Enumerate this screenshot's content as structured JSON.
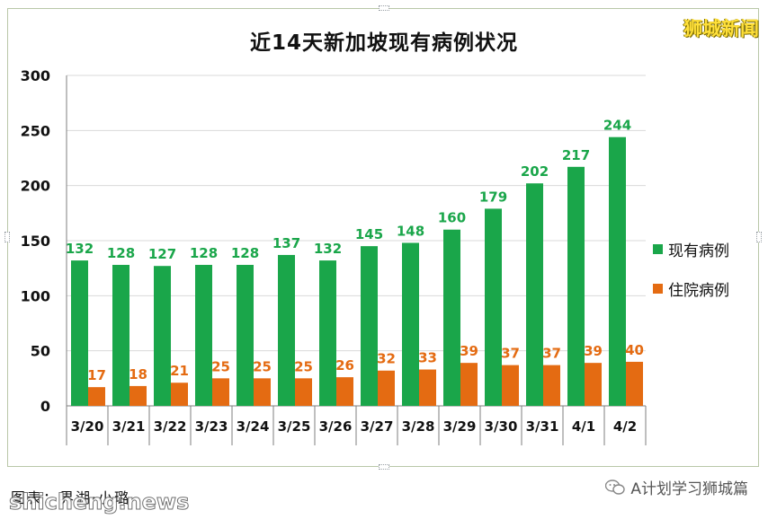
{
  "watermark_top": "狮城新闻",
  "caption": "图表：界湖·小璐",
  "site_overlay": "shicheng.news",
  "wechat_label": "A计划学习狮城篇",
  "colors": {
    "current": "#1aa64a",
    "hospital": "#e46b12",
    "grid": "#d9d9d9"
  },
  "chart_data": {
    "type": "bar",
    "title": "近14天新加坡现有病例状况",
    "categories": [
      "3/20",
      "3/21",
      "3/22",
      "3/23",
      "3/24",
      "3/25",
      "3/26",
      "3/27",
      "3/28",
      "3/29",
      "3/30",
      "3/31",
      "4/1",
      "4/2"
    ],
    "series": [
      {
        "name": "现有病例",
        "values": [
          132,
          128,
          127,
          128,
          128,
          137,
          132,
          145,
          148,
          160,
          179,
          202,
          217,
          244
        ]
      },
      {
        "name": "住院病例",
        "values": [
          17,
          18,
          21,
          25,
          25,
          25,
          26,
          32,
          33,
          39,
          37,
          37,
          39,
          40
        ]
      }
    ],
    "yticks": [
      0,
      50,
      100,
      150,
      200,
      250,
      300
    ],
    "ylim": [
      0,
      300
    ],
    "grid": true,
    "legend": "right"
  }
}
